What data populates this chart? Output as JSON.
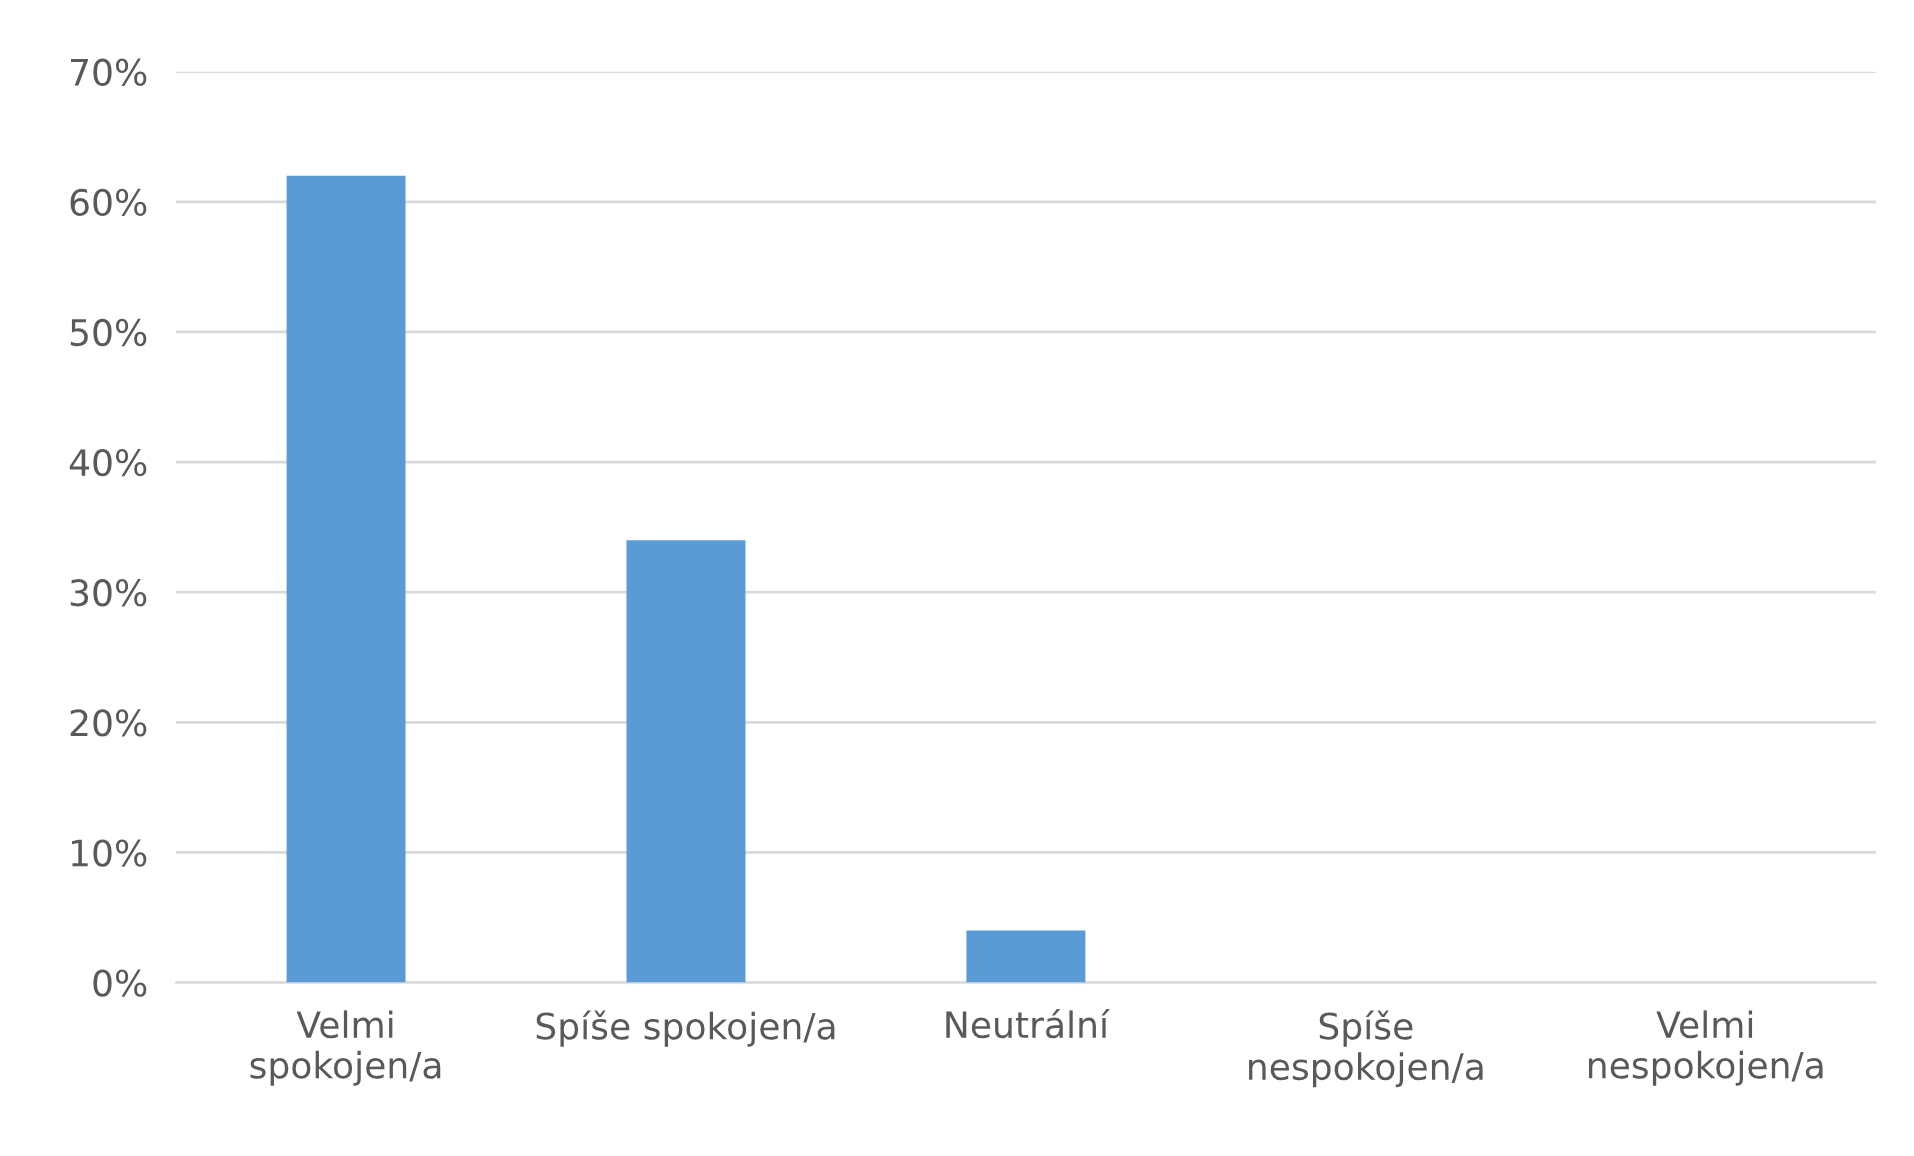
{
  "chart_data": {
    "type": "bar",
    "categories": [
      "Velmi\nspokojen/a",
      "Spíše spokojen/a",
      "Neutrální",
      "Spíše\nnespokojen/a",
      "Velmi\nnespokojen/a"
    ],
    "values": [
      62,
      34,
      4,
      0,
      0
    ],
    "color": "#5b9bd5",
    "ylim": [
      0,
      70
    ],
    "yticks": [
      {
        "value": 0,
        "label": "0%"
      },
      {
        "value": 10,
        "label": "10%"
      },
      {
        "value": 20,
        "label": "20%"
      },
      {
        "value": 30,
        "label": "30%"
      },
      {
        "value": 40,
        "label": "40%"
      },
      {
        "value": 50,
        "label": "50%"
      },
      {
        "value": 60,
        "label": "60%"
      },
      {
        "value": 70,
        "label": "70%"
      }
    ],
    "grid": "y"
  }
}
